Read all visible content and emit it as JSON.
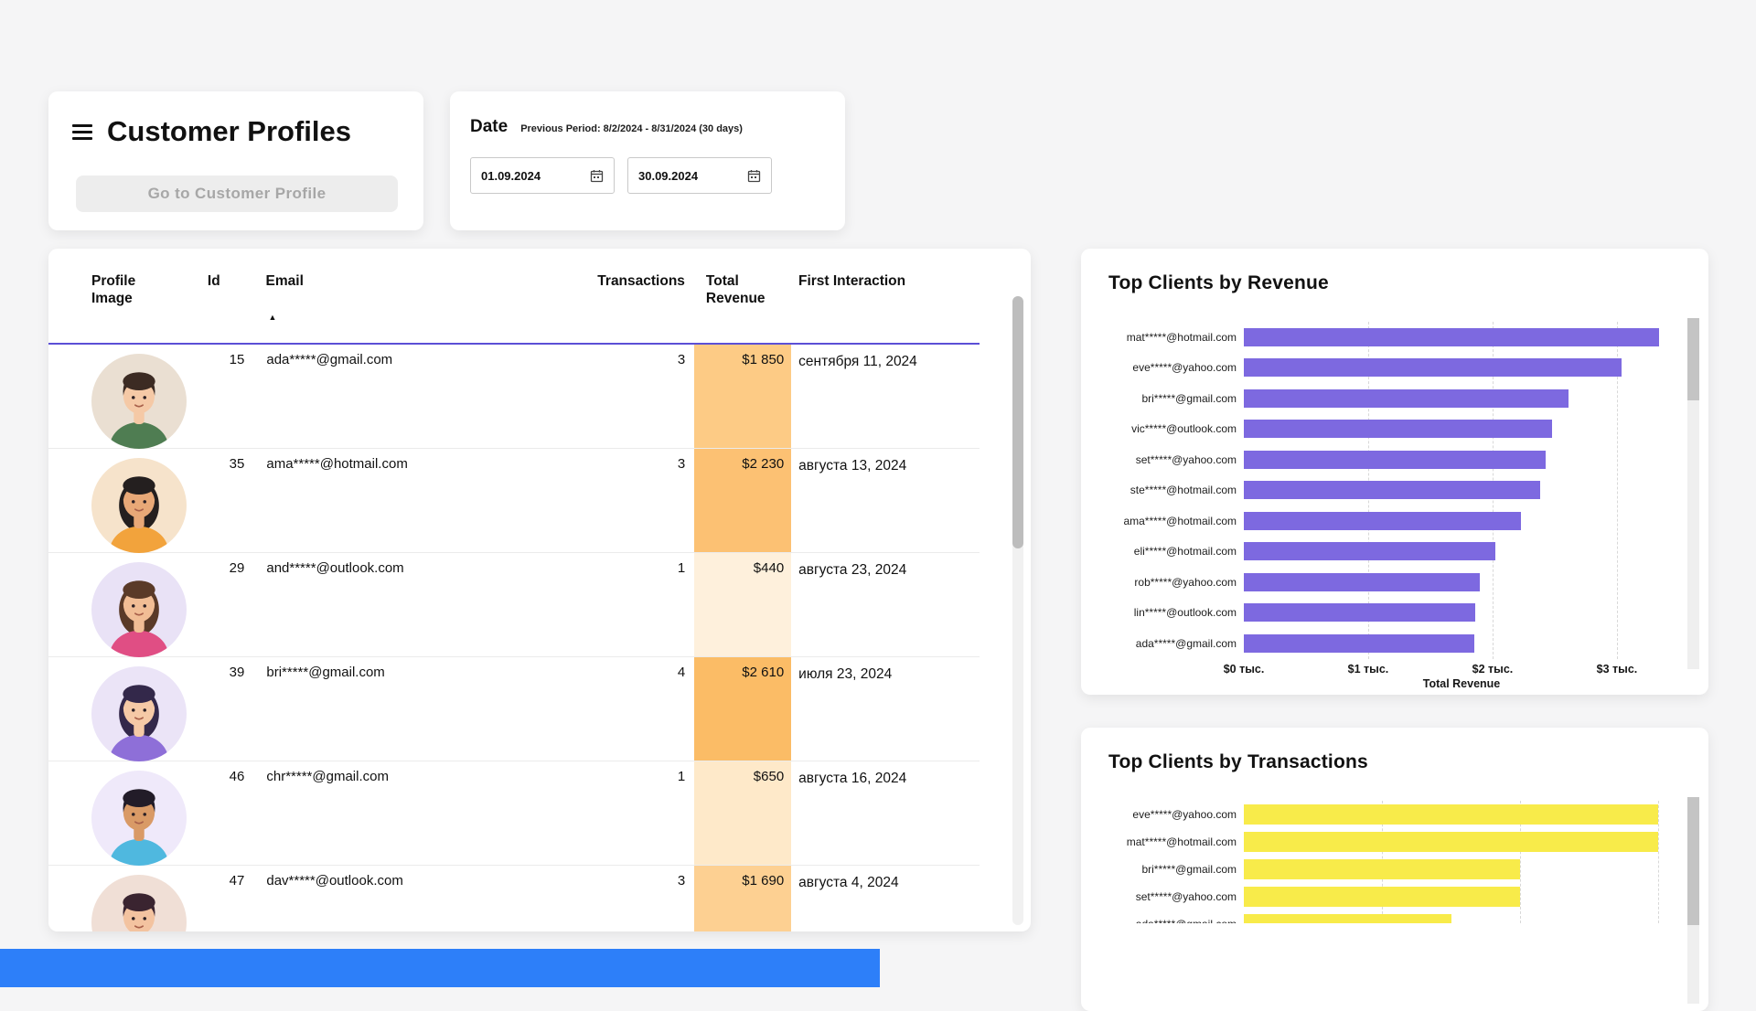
{
  "colors": {
    "accent_purple": "#7D69E0",
    "bar_yellow": "#F8EB4A",
    "header_underline": "#5B4FD6",
    "bottom_bar_blue": "#2D7FF9"
  },
  "header": {
    "title": "Customer Profiles",
    "go_button": "Go to Customer Profile"
  },
  "date_panel": {
    "label": "Date",
    "previous_period": "Previous Period: 8/2/2024 - 8/31/2024 (30 days)",
    "start_date": "01.09.2024",
    "end_date": "30.09.2024"
  },
  "table": {
    "columns": {
      "profile": "Profile Image",
      "id": "Id",
      "email": "Email",
      "transactions": "Transactions",
      "revenue": "Total Revenue",
      "first_interaction": "First Interaction"
    },
    "sort_indicator": "▲",
    "rows": [
      {
        "id": "15",
        "email": "ada*****@gmail.com",
        "transactions": "3",
        "revenue": "$1 850",
        "revenue_bg": "#FDCB85",
        "first_interaction": "сентября 11, 2024",
        "avatar": {
          "bg": "#EADFD2",
          "skin": "#F5C9A6",
          "hair": "#3C2B23",
          "shirt": "#4F7D52",
          "long": false
        }
      },
      {
        "id": "35",
        "email": "ama*****@hotmail.com",
        "transactions": "3",
        "revenue": "$2 230",
        "revenue_bg": "#FCC173",
        "first_interaction": "августа 13, 2024",
        "avatar": {
          "bg": "#F6E3CB",
          "skin": "#E8A877",
          "hair": "#241F1F",
          "shirt": "#F2A33C",
          "long": true
        }
      },
      {
        "id": "29",
        "email": "and*****@outlook.com",
        "transactions": "1",
        "revenue": "$440",
        "revenue_bg": "#FEF0DC",
        "first_interaction": "августа 23, 2024",
        "avatar": {
          "bg": "#E9E2F6",
          "skin": "#F1BD95",
          "hair": "#5A3A28",
          "shirt": "#E04E84",
          "long": true
        }
      },
      {
        "id": "39",
        "email": "bri*****@gmail.com",
        "transactions": "4",
        "revenue": "$2 610",
        "revenue_bg": "#FBBC66",
        "first_interaction": "июля 23, 2024",
        "avatar": {
          "bg": "#EBE4F7",
          "skin": "#F5C9A6",
          "hair": "#33284A",
          "shirt": "#8E6FD8",
          "long": true
        }
      },
      {
        "id": "46",
        "email": "chr*****@gmail.com",
        "transactions": "1",
        "revenue": "$650",
        "revenue_bg": "#FEE9C9",
        "first_interaction": "августа 16, 2024",
        "avatar": {
          "bg": "#EFE9FA",
          "skin": "#D99A66",
          "hair": "#221C28",
          "shirt": "#4FB8DF",
          "long": false
        }
      },
      {
        "id": "47",
        "email": "dav*****@outlook.com",
        "transactions": "3",
        "revenue": "$1 690",
        "revenue_bg": "#FDD092",
        "first_interaction": "августа 4, 2024",
        "avatar": {
          "bg": "#F0DFD6",
          "skin": "#F3C3A0",
          "hair": "#3A2430",
          "shirt": "#EE86A8",
          "long": false
        }
      }
    ]
  },
  "revenue_chart": {
    "type": "bar",
    "title": "Top Clients by Revenue",
    "xlabel": "Total Revenue",
    "bar_color": "#7D69E0",
    "max": 3500,
    "gridline_values": [
      1000,
      2000,
      3000
    ],
    "ticks": [
      {
        "label": "$0 тыс.",
        "value": 0
      },
      {
        "label": "$1 тыс.",
        "value": 1000
      },
      {
        "label": "$2 тыс.",
        "value": 2000
      },
      {
        "label": "$3 тыс.",
        "value": 3000
      }
    ],
    "items": [
      {
        "label": "mat*****@hotmail.com",
        "value": 3340
      },
      {
        "label": "eve*****@yahoo.com",
        "value": 3040
      },
      {
        "label": "bri*****@gmail.com",
        "value": 2610
      },
      {
        "label": "vic*****@outlook.com",
        "value": 2480
      },
      {
        "label": "set*****@yahoo.com",
        "value": 2430
      },
      {
        "label": "ste*****@hotmail.com",
        "value": 2380
      },
      {
        "label": "ama*****@hotmail.com",
        "value": 2230
      },
      {
        "label": "eli*****@hotmail.com",
        "value": 2020
      },
      {
        "label": "rob*****@yahoo.com",
        "value": 1900
      },
      {
        "label": "lin*****@outlook.com",
        "value": 1860
      },
      {
        "label": "ada*****@gmail.com",
        "value": 1850
      }
    ]
  },
  "transactions_chart": {
    "type": "bar",
    "title": "Top Clients by Transactions",
    "bar_color": "#F8EB4A",
    "max": 6.3,
    "gridline_values": [
      2,
      4,
      6
    ],
    "items": [
      {
        "label": "eve*****@yahoo.com",
        "value": 6
      },
      {
        "label": "mat*****@hotmail.com",
        "value": 6
      },
      {
        "label": "bri*****@gmail.com",
        "value": 4
      },
      {
        "label": "set*****@yahoo.com",
        "value": 4
      },
      {
        "label": "ada*****@gmail.com",
        "value": 3
      }
    ]
  }
}
